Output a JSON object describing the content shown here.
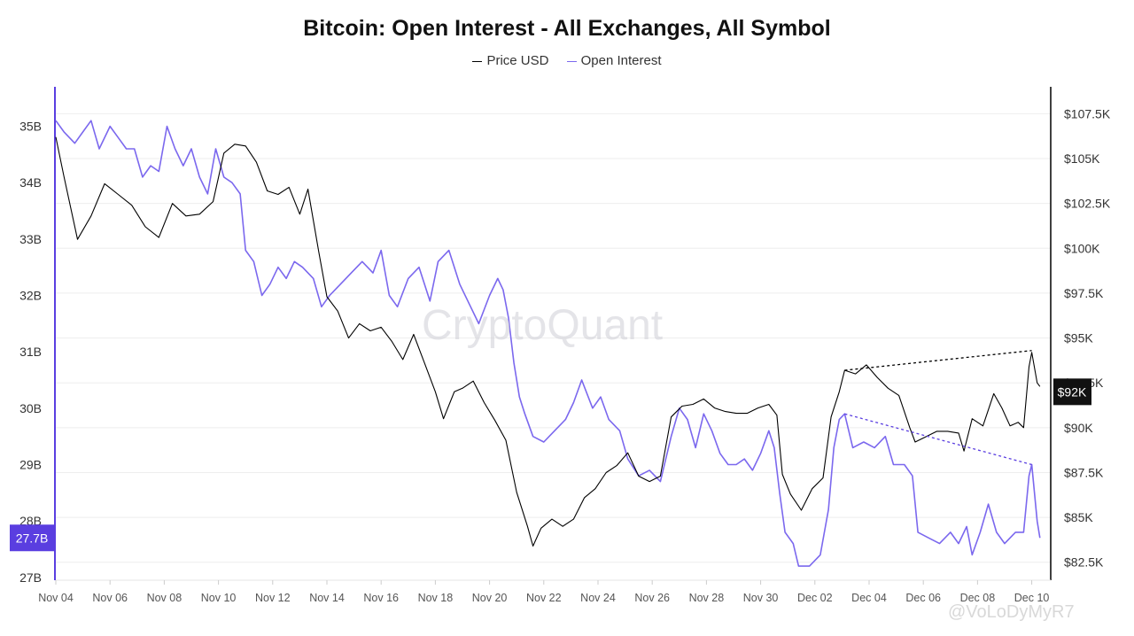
{
  "chart_data": {
    "type": "line",
    "title": "Bitcoin: Open Interest - All Exchanges, All Symbol",
    "legend": {
      "position": "top-center"
    },
    "x_ticks": [
      "Nov 04",
      "Nov 06",
      "Nov 08",
      "Nov 10",
      "Nov 12",
      "Nov 14",
      "Nov 16",
      "Nov 18",
      "Nov 20",
      "Nov 22",
      "Nov 24",
      "Nov 26",
      "Nov 28",
      "Nov 30",
      "Dec 02",
      "Dec 04",
      "Dec 06",
      "Dec 08",
      "Dec 10"
    ],
    "x_domain": [
      "Nov 04",
      "Dec 10.7"
    ],
    "left_axis": {
      "ticks": [
        "27B",
        "28B",
        "29B",
        "30B",
        "31B",
        "32B",
        "33B",
        "34B",
        "35B"
      ],
      "range": [
        26.95,
        35.7
      ],
      "current_label": "27.7B",
      "current_value": 27.7,
      "color": "#5a3ee0"
    },
    "right_axis": {
      "ticks": [
        "$82.5K",
        "$85K",
        "$87.5K",
        "$90K",
        "$92.5K",
        "$95K",
        "$97.5K",
        "$100K",
        "$102.5K",
        "$105K",
        "$107.5K"
      ],
      "range": [
        81.5,
        109.0
      ],
      "current_label": "$92K",
      "current_value": 92.0
    },
    "grid": true,
    "series": [
      {
        "name": "Price USD",
        "color": "#000000",
        "axis": "right",
        "points": [
          [
            "Nov 04",
            106.2
          ],
          [
            "Nov 04.3",
            104.0
          ],
          [
            "Nov 04.8",
            100.5
          ],
          [
            "Nov 05.3",
            101.8
          ],
          [
            "Nov 05.8",
            103.6
          ],
          [
            "Nov 06.3",
            103.0
          ],
          [
            "Nov 06.8",
            102.4
          ],
          [
            "Nov 07.3",
            101.2
          ],
          [
            "Nov 07.8",
            100.6
          ],
          [
            "Nov 08.3",
            102.5
          ],
          [
            "Nov 08.8",
            101.8
          ],
          [
            "Nov 09.3",
            101.9
          ],
          [
            "Nov 09.8",
            102.6
          ],
          [
            "Nov 10.2",
            105.3
          ],
          [
            "Nov 10.6",
            105.8
          ],
          [
            "Nov 11.0",
            105.7
          ],
          [
            "Nov 11.4",
            104.8
          ],
          [
            "Nov 11.8",
            103.2
          ],
          [
            "Nov 12.2",
            103.0
          ],
          [
            "Nov 12.6",
            103.4
          ],
          [
            "Nov 13.0",
            101.9
          ],
          [
            "Nov 13.3",
            103.3
          ],
          [
            "Nov 13.7",
            99.8
          ],
          [
            "Nov 14.0",
            97.3
          ],
          [
            "Nov 14.4",
            96.5
          ],
          [
            "Nov 14.8",
            95.0
          ],
          [
            "Nov 15.2",
            95.8
          ],
          [
            "Nov 15.6",
            95.4
          ],
          [
            "Nov 16.0",
            95.6
          ],
          [
            "Nov 16.4",
            94.8
          ],
          [
            "Nov 16.8",
            93.8
          ],
          [
            "Nov 17.2",
            95.2
          ],
          [
            "Nov 17.6",
            93.6
          ],
          [
            "Nov 18.0",
            92.0
          ],
          [
            "Nov 18.3",
            90.5
          ],
          [
            "Nov 18.7",
            92.0
          ],
          [
            "Nov 19.0",
            92.2
          ],
          [
            "Nov 19.4",
            92.6
          ],
          [
            "Nov 19.8",
            91.4
          ],
          [
            "Nov 20.2",
            90.4
          ],
          [
            "Nov 20.6",
            89.3
          ],
          [
            "Nov 21.0",
            86.4
          ],
          [
            "Nov 21.4",
            84.5
          ],
          [
            "Nov 21.6",
            83.4
          ],
          [
            "Nov 21.9",
            84.4
          ],
          [
            "Nov 22.3",
            84.9
          ],
          [
            "Nov 22.7",
            84.5
          ],
          [
            "Nov 23.1",
            84.9
          ],
          [
            "Nov 23.5",
            86.1
          ],
          [
            "Nov 23.9",
            86.6
          ],
          [
            "Nov 24.3",
            87.5
          ],
          [
            "Nov 24.7",
            87.9
          ],
          [
            "Nov 25.1",
            88.6
          ],
          [
            "Nov 25.5",
            87.3
          ],
          [
            "Nov 25.9",
            87.0
          ],
          [
            "Nov 26.3",
            87.3
          ],
          [
            "Nov 26.7",
            90.6
          ],
          [
            "Nov 27.1",
            91.2
          ],
          [
            "Nov 27.5",
            91.3
          ],
          [
            "Nov 27.9",
            91.6
          ],
          [
            "Nov 28.3",
            91.1
          ],
          [
            "Nov 28.7",
            90.9
          ],
          [
            "Nov 29.1",
            90.8
          ],
          [
            "Nov 29.5",
            90.8
          ],
          [
            "Nov 29.9",
            91.1
          ],
          [
            "Nov 30.3",
            91.3
          ],
          [
            "Nov 30.6",
            90.7
          ],
          [
            "Nov 30.8",
            87.4
          ],
          [
            "Dec 01.1",
            86.3
          ],
          [
            "Dec 01.5",
            85.4
          ],
          [
            "Dec 01.9",
            86.6
          ],
          [
            "Dec 02.3",
            87.2
          ],
          [
            "Dec 02.6",
            90.6
          ],
          [
            "Dec 02.9",
            92.0
          ],
          [
            "Dec 03.1",
            93.2
          ],
          [
            "Dec 03.5",
            93.0
          ],
          [
            "Dec 03.9",
            93.5
          ],
          [
            "Dec 04.3",
            92.8
          ],
          [
            "Dec 04.7",
            92.2
          ],
          [
            "Dec 05.1",
            91.8
          ],
          [
            "Dec 05.5",
            90.0
          ],
          [
            "Dec 05.7",
            89.2
          ],
          [
            "Dec 06.1",
            89.5
          ],
          [
            "Dec 06.5",
            89.8
          ],
          [
            "Dec 06.9",
            89.8
          ],
          [
            "Dec 07.3",
            89.7
          ],
          [
            "Dec 07.5",
            88.7
          ],
          [
            "Dec 07.8",
            90.5
          ],
          [
            "Dec 08.2",
            90.1
          ],
          [
            "Dec 08.6",
            91.9
          ],
          [
            "Dec 08.9",
            91.1
          ],
          [
            "Dec 09.2",
            90.1
          ],
          [
            "Dec 09.5",
            90.3
          ],
          [
            "Dec 09.7",
            90.0
          ],
          [
            "Dec 09.9",
            93.4
          ],
          [
            "Dec 10.0",
            94.2
          ],
          [
            "Dec 10.2",
            92.5
          ],
          [
            "Dec 10.3",
            92.3
          ]
        ]
      },
      {
        "name": "Open Interest",
        "color": "#7b68ee",
        "axis": "left",
        "points": [
          [
            "Nov 04",
            35.1
          ],
          [
            "Nov 04.3",
            34.9
          ],
          [
            "Nov 04.7",
            34.7
          ],
          [
            "Nov 05.0",
            34.9
          ],
          [
            "Nov 05.3",
            35.1
          ],
          [
            "Nov 05.6",
            34.6
          ],
          [
            "Nov 06.0",
            35.0
          ],
          [
            "Nov 06.3",
            34.8
          ],
          [
            "Nov 06.6",
            34.6
          ],
          [
            "Nov 06.9",
            34.6
          ],
          [
            "Nov 07.2",
            34.1
          ],
          [
            "Nov 07.5",
            34.3
          ],
          [
            "Nov 07.8",
            34.2
          ],
          [
            "Nov 08.1",
            35.0
          ],
          [
            "Nov 08.4",
            34.6
          ],
          [
            "Nov 08.7",
            34.3
          ],
          [
            "Nov 09.0",
            34.6
          ],
          [
            "Nov 09.3",
            34.1
          ],
          [
            "Nov 09.6",
            33.8
          ],
          [
            "Nov 09.9",
            34.6
          ],
          [
            "Nov 10.2",
            34.1
          ],
          [
            "Nov 10.5",
            34.0
          ],
          [
            "Nov 10.8",
            33.8
          ],
          [
            "Nov 11.0",
            32.8
          ],
          [
            "Nov 11.3",
            32.6
          ],
          [
            "Nov 11.6",
            32.0
          ],
          [
            "Nov 11.9",
            32.2
          ],
          [
            "Nov 12.2",
            32.5
          ],
          [
            "Nov 12.5",
            32.3
          ],
          [
            "Nov 12.8",
            32.6
          ],
          [
            "Nov 13.1",
            32.5
          ],
          [
            "Nov 13.5",
            32.3
          ],
          [
            "Nov 13.8",
            31.8
          ],
          [
            "Nov 14.1",
            32.0
          ],
          [
            "Nov 14.5",
            32.2
          ],
          [
            "Nov 14.9",
            32.4
          ],
          [
            "Nov 15.3",
            32.6
          ],
          [
            "Nov 15.7",
            32.4
          ],
          [
            "Nov 16.0",
            32.8
          ],
          [
            "Nov 16.3",
            32.0
          ],
          [
            "Nov 16.6",
            31.8
          ],
          [
            "Nov 17.0",
            32.3
          ],
          [
            "Nov 17.4",
            32.5
          ],
          [
            "Nov 17.8",
            31.9
          ],
          [
            "Nov 18.1",
            32.6
          ],
          [
            "Nov 18.5",
            32.8
          ],
          [
            "Nov 18.9",
            32.2
          ],
          [
            "Nov 19.3",
            31.8
          ],
          [
            "Nov 19.6",
            31.5
          ],
          [
            "Nov 20.0",
            32.0
          ],
          [
            "Nov 20.3",
            32.3
          ],
          [
            "Nov 20.5",
            32.1
          ],
          [
            "Nov 20.7",
            31.6
          ],
          [
            "Nov 20.9",
            30.8
          ],
          [
            "Nov 21.1",
            30.2
          ],
          [
            "Nov 21.3",
            29.9
          ],
          [
            "Nov 21.6",
            29.5
          ],
          [
            "Nov 22.0",
            29.4
          ],
          [
            "Nov 22.4",
            29.6
          ],
          [
            "Nov 22.8",
            29.8
          ],
          [
            "Nov 23.1",
            30.1
          ],
          [
            "Nov 23.4",
            30.5
          ],
          [
            "Nov 23.8",
            30.0
          ],
          [
            "Nov 24.1",
            30.2
          ],
          [
            "Nov 24.4",
            29.8
          ],
          [
            "Nov 24.8",
            29.6
          ],
          [
            "Nov 25.1",
            29.1
          ],
          [
            "Nov 25.5",
            28.8
          ],
          [
            "Nov 25.9",
            28.9
          ],
          [
            "Nov 26.3",
            28.7
          ],
          [
            "Nov 26.7",
            29.5
          ],
          [
            "Nov 27.0",
            30.0
          ],
          [
            "Nov 27.3",
            29.8
          ],
          [
            "Nov 27.6",
            29.3
          ],
          [
            "Nov 27.9",
            29.9
          ],
          [
            "Nov 28.2",
            29.6
          ],
          [
            "Nov 28.5",
            29.2
          ],
          [
            "Nov 28.8",
            29.0
          ],
          [
            "Nov 29.1",
            29.0
          ],
          [
            "Nov 29.4",
            29.1
          ],
          [
            "Nov 29.7",
            28.9
          ],
          [
            "Nov 30.0",
            29.2
          ],
          [
            "Nov 30.3",
            29.6
          ],
          [
            "Nov 30.5",
            29.3
          ],
          [
            "Nov 30.7",
            28.5
          ],
          [
            "Nov 30.9",
            27.8
          ],
          [
            "Dec 01.2",
            27.6
          ],
          [
            "Dec 01.4",
            27.2
          ],
          [
            "Dec 01.8",
            27.2
          ],
          [
            "Dec 02.2",
            27.4
          ],
          [
            "Dec 02.5",
            28.2
          ],
          [
            "Dec 02.7",
            29.3
          ],
          [
            "Dec 02.9",
            29.8
          ],
          [
            "Dec 03.1",
            29.9
          ],
          [
            "Dec 03.4",
            29.3
          ],
          [
            "Dec 03.8",
            29.4
          ],
          [
            "Dec 04.2",
            29.3
          ],
          [
            "Dec 04.6",
            29.5
          ],
          [
            "Dec 04.9",
            29.0
          ],
          [
            "Dec 05.3",
            29.0
          ],
          [
            "Dec 05.6",
            28.8
          ],
          [
            "Dec 05.8",
            27.8
          ],
          [
            "Dec 06.2",
            27.7
          ],
          [
            "Dec 06.6",
            27.6
          ],
          [
            "Dec 07.0",
            27.8
          ],
          [
            "Dec 07.3",
            27.6
          ],
          [
            "Dec 07.6",
            27.9
          ],
          [
            "Dec 07.8",
            27.4
          ],
          [
            "Dec 08.1",
            27.8
          ],
          [
            "Dec 08.4",
            28.3
          ],
          [
            "Dec 08.7",
            27.8
          ],
          [
            "Dec 09.0",
            27.6
          ],
          [
            "Dec 09.4",
            27.8
          ],
          [
            "Dec 09.7",
            27.8
          ],
          [
            "Dec 09.9",
            28.8
          ],
          [
            "Dec 10.0",
            29.0
          ],
          [
            "Dec 10.2",
            28.0
          ],
          [
            "Dec 10.3",
            27.7
          ]
        ]
      }
    ],
    "annotations": [
      {
        "series": "Price USD",
        "style": "dotted",
        "color": "#000000",
        "from": [
          "Dec 03.1",
          93.2
        ],
        "to": [
          "Dec 10.0",
          94.3
        ]
      },
      {
        "series": "Open Interest",
        "style": "dotted",
        "color": "#5a3ee0",
        "from": [
          "Dec 03.1",
          29.9
        ],
        "to": [
          "Dec 10.0",
          29.0
        ]
      }
    ]
  },
  "watermark": "CryptoQuant",
  "credit": "@VoLoDyMyR7"
}
